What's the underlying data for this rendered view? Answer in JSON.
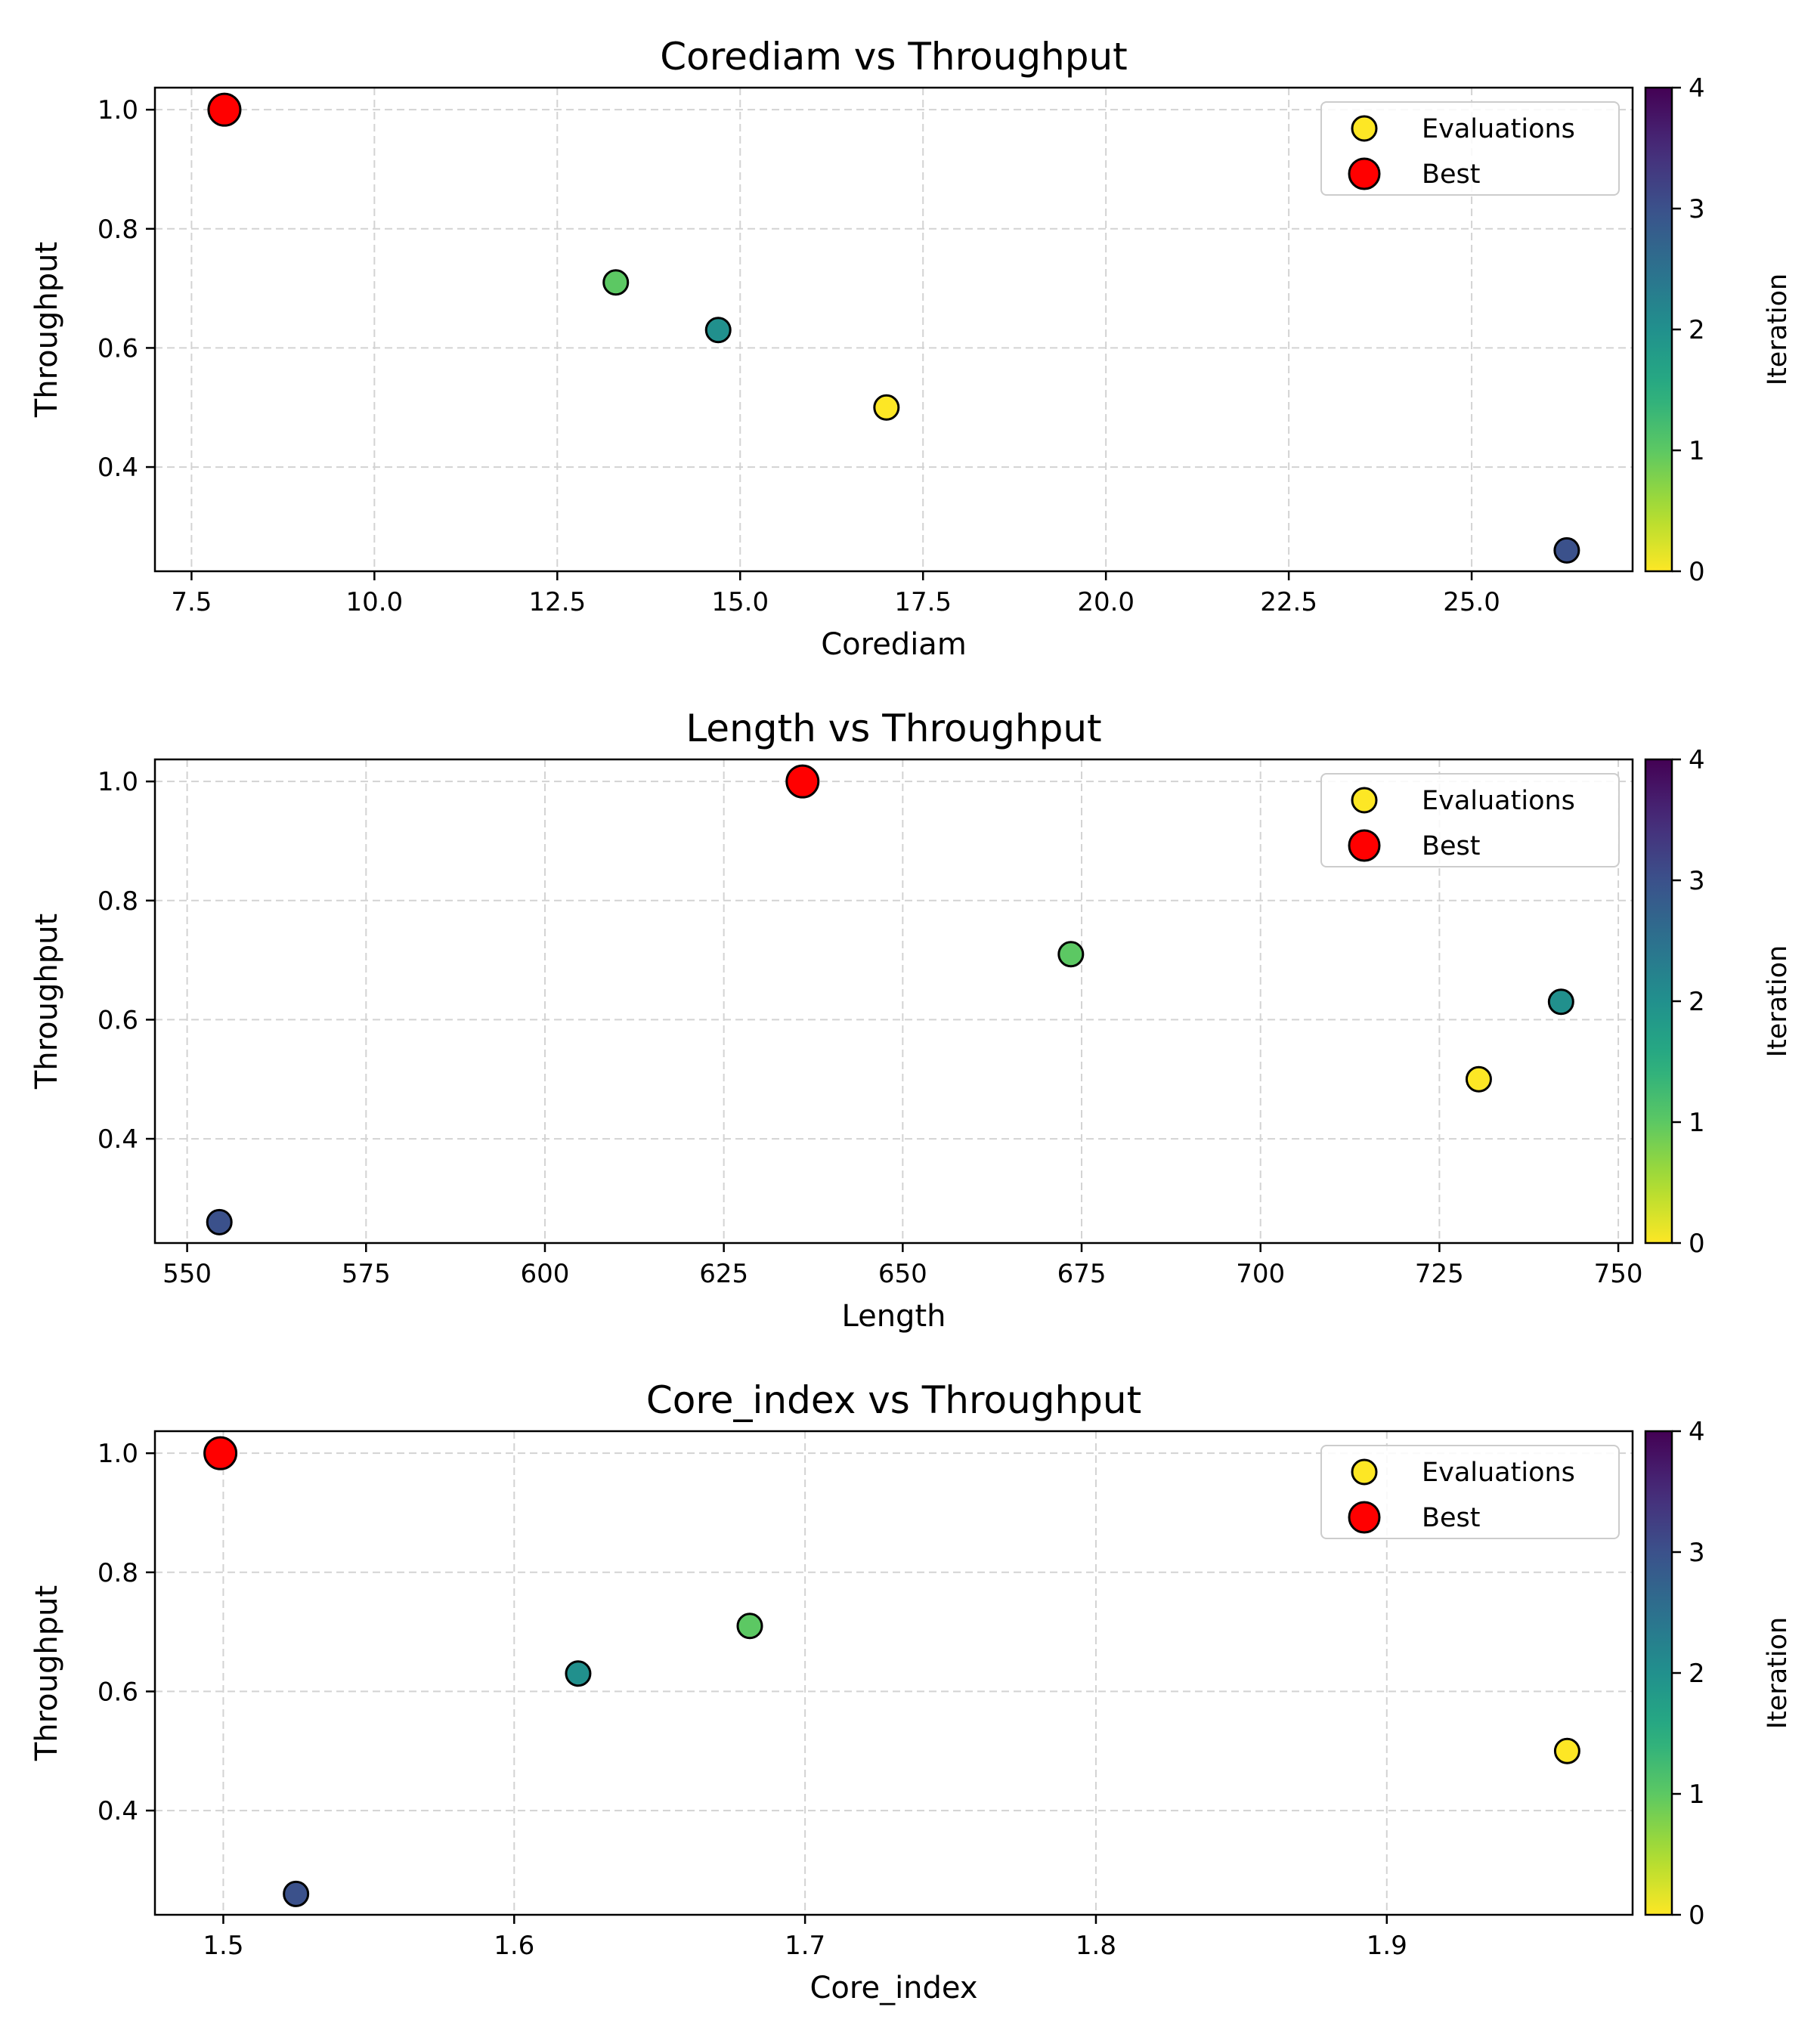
{
  "chart_data": [
    {
      "type": "scatter",
      "title": "Corediam vs Throughput",
      "xlabel": "Corediam",
      "ylabel": "Throughput",
      "xlim": [
        7.0,
        27.2
      ],
      "ylim": [
        0.225,
        1.037
      ],
      "xticks": [
        7.5,
        10.0,
        12.5,
        15.0,
        17.5,
        20.0,
        22.5,
        25.0
      ],
      "xtick_labels": [
        "7.5",
        "10.0",
        "12.5",
        "15.0",
        "17.5",
        "20.0",
        "22.5",
        "25.0"
      ],
      "yticks": [
        0.4,
        0.6,
        0.8,
        1.0
      ],
      "ytick_labels": [
        "0.4",
        "0.6",
        "0.8",
        "1.0"
      ],
      "grid": true,
      "legend_position": "top-right",
      "series": [
        {
          "name": "Evaluations",
          "points": [
            {
              "x": 17.0,
              "y": 0.5,
              "iteration": 0
            },
            {
              "x": 13.3,
              "y": 0.71,
              "iteration": 1
            },
            {
              "x": 14.7,
              "y": 0.63,
              "iteration": 2
            },
            {
              "x": 26.3,
              "y": 0.26,
              "iteration": 3
            },
            {
              "x": 7.95,
              "y": 1.0,
              "iteration": 4
            }
          ]
        },
        {
          "name": "Best",
          "points": [
            {
              "x": 7.95,
              "y": 1.0
            }
          ]
        }
      ],
      "colorbar": {
        "label": "Iteration",
        "range": [
          0,
          4
        ],
        "ticks": [
          0,
          1,
          2,
          3,
          4
        ],
        "tick_labels": [
          "0",
          "1",
          "2",
          "3",
          "4"
        ],
        "colormap": "viridis_r"
      }
    },
    {
      "type": "scatter",
      "title": "Length vs Throughput",
      "xlabel": "Length",
      "ylabel": "Throughput",
      "xlim": [
        545.5,
        752.0
      ],
      "ylim": [
        0.225,
        1.037
      ],
      "xticks": [
        550,
        575,
        600,
        625,
        650,
        675,
        700,
        725,
        750
      ],
      "xtick_labels": [
        "550",
        "575",
        "600",
        "625",
        "650",
        "675",
        "700",
        "725",
        "750"
      ],
      "yticks": [
        0.4,
        0.6,
        0.8,
        1.0
      ],
      "ytick_labels": [
        "0.4",
        "0.6",
        "0.8",
        "1.0"
      ],
      "grid": true,
      "legend_position": "top-right",
      "series": [
        {
          "name": "Evaluations",
          "points": [
            {
              "x": 730.5,
              "y": 0.5,
              "iteration": 0
            },
            {
              "x": 673.5,
              "y": 0.71,
              "iteration": 1
            },
            {
              "x": 742.0,
              "y": 0.63,
              "iteration": 2
            },
            {
              "x": 554.5,
              "y": 0.26,
              "iteration": 3
            },
            {
              "x": 636.0,
              "y": 1.0,
              "iteration": 4
            }
          ]
        },
        {
          "name": "Best",
          "points": [
            {
              "x": 636.0,
              "y": 1.0
            }
          ]
        }
      ],
      "colorbar": {
        "label": "Iteration",
        "range": [
          0,
          4
        ],
        "ticks": [
          0,
          1,
          2,
          3,
          4
        ],
        "tick_labels": [
          "0",
          "1",
          "2",
          "3",
          "4"
        ],
        "colormap": "viridis_r"
      }
    },
    {
      "type": "scatter",
      "title": "Core_index vs Throughput",
      "xlabel": "Core_index",
      "ylabel": "Throughput",
      "xlim": [
        1.4765,
        1.9845
      ],
      "ylim": [
        0.225,
        1.037
      ],
      "xticks": [
        1.5,
        1.6,
        1.7,
        1.8,
        1.9
      ],
      "xtick_labels": [
        "1.5",
        "1.6",
        "1.7",
        "1.8",
        "1.9"
      ],
      "yticks": [
        0.4,
        0.6,
        0.8,
        1.0
      ],
      "ytick_labels": [
        "0.4",
        "0.6",
        "0.8",
        "1.0"
      ],
      "grid": true,
      "legend_position": "top-right",
      "series": [
        {
          "name": "Evaluations",
          "points": [
            {
              "x": 1.962,
              "y": 0.5,
              "iteration": 0
            },
            {
              "x": 1.681,
              "y": 0.71,
              "iteration": 1
            },
            {
              "x": 1.622,
              "y": 0.63,
              "iteration": 2
            },
            {
              "x": 1.525,
              "y": 0.26,
              "iteration": 3
            },
            {
              "x": 1.499,
              "y": 1.0,
              "iteration": 4
            }
          ]
        },
        {
          "name": "Best",
          "points": [
            {
              "x": 1.499,
              "y": 1.0
            }
          ]
        }
      ],
      "colorbar": {
        "label": "Iteration",
        "range": [
          0,
          4
        ],
        "ticks": [
          0,
          1,
          2,
          3,
          4
        ],
        "tick_labels": [
          "0",
          "1",
          "2",
          "3",
          "4"
        ],
        "colormap": "viridis_r"
      }
    }
  ],
  "colors": {
    "best": "#ff0000",
    "legend_evaluations": "#fde725",
    "grid": "#d3d3d3",
    "edge": "#000000"
  }
}
